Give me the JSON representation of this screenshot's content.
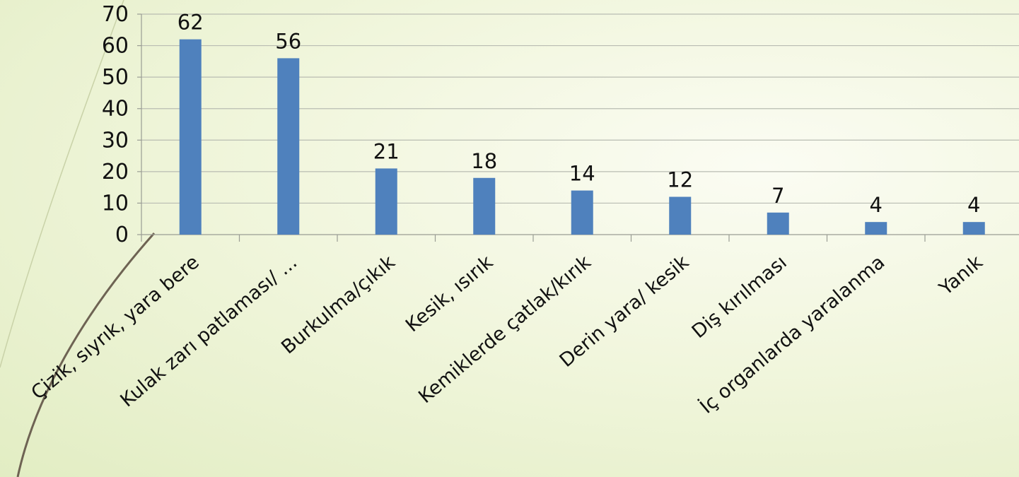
{
  "chart_data": {
    "type": "bar",
    "categories": [
      "Çizik, sıyrık, yara bere",
      "Kulak zarı patlaması/ ...",
      "Burkulma/çıkık",
      "Kesik, ısırık",
      "Kemiklerde çatlak/kırık",
      "Derin yara/ kesik",
      "Diş kırılması",
      "İç organlarda yaralanma",
      "Yanık"
    ],
    "values": [
      62,
      56,
      21,
      18,
      14,
      12,
      7,
      4,
      4
    ],
    "ylim": [
      0,
      70
    ],
    "yticks": [
      0,
      10,
      20,
      30,
      40,
      50,
      60,
      70
    ],
    "grid": true,
    "data_labels": true,
    "colors": {
      "bar": "#4f81bd"
    }
  }
}
